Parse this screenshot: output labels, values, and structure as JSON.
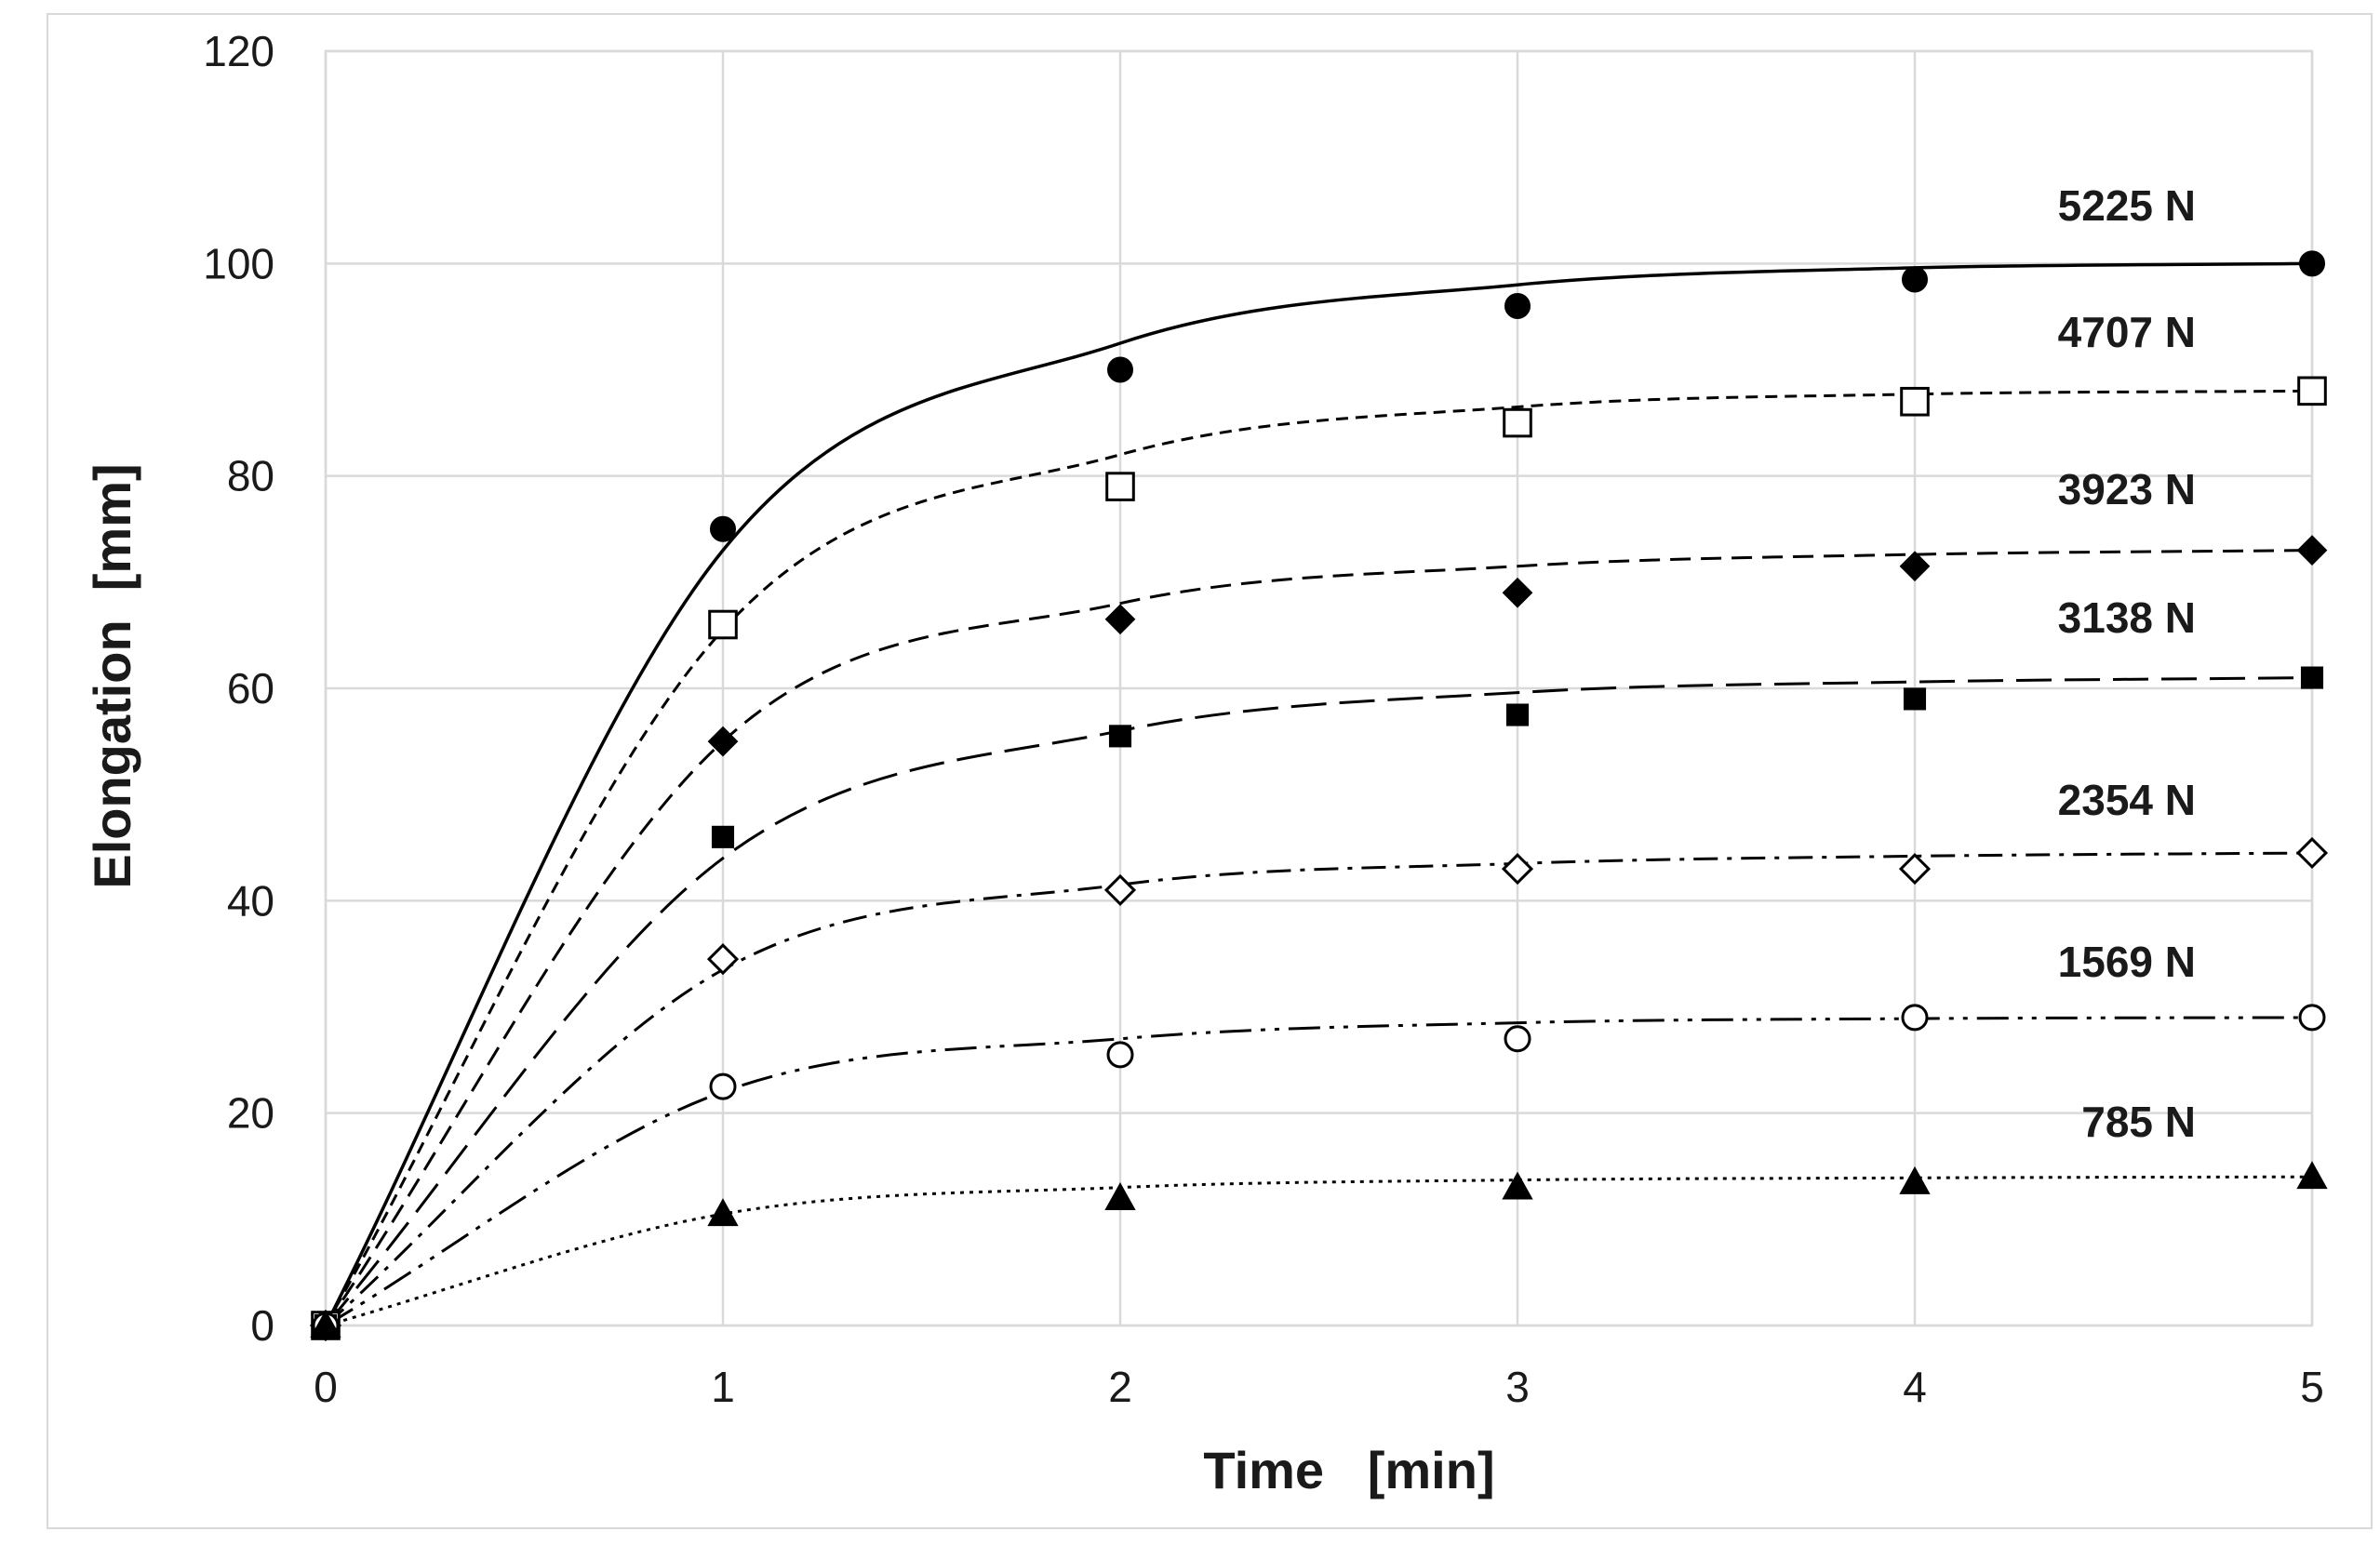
{
  "chart_data": {
    "type": "line",
    "title": "",
    "xlabel": "Time   [min]",
    "ylabel": "Elongation  [mm]",
    "xlim": [
      0,
      5
    ],
    "ylim": [
      0,
      120
    ],
    "xticks": [
      "0",
      "1",
      "2",
      "3",
      "4",
      "5"
    ],
    "yticks": [
      "0",
      "20",
      "40",
      "60",
      "80",
      "100",
      "120"
    ],
    "grid": true,
    "legend": "inline labels at right",
    "series": [
      {
        "name": "5225 N",
        "marker": "filled-circle",
        "line_style": "solid",
        "x": [
          0,
          1,
          2,
          3,
          4,
          5
        ],
        "y": [
          0,
          75,
          90,
          96,
          98.5,
          100
        ],
        "fit": [
          0,
          73,
          92.5,
          98,
          99.6,
          100
        ]
      },
      {
        "name": "4707 N",
        "marker": "open-square",
        "line_style": "short-dash",
        "x": [
          0,
          1,
          2,
          3,
          4,
          5
        ],
        "y": [
          0,
          66,
          79,
          85,
          87,
          88
        ],
        "fit": [
          0,
          65.5,
          82,
          86.5,
          87.7,
          88
        ]
      },
      {
        "name": "3923 N",
        "marker": "filled-diamond",
        "line_style": "dash",
        "x": [
          0,
          1,
          2,
          3,
          4,
          5
        ],
        "y": [
          0,
          55,
          66.5,
          69,
          71.5,
          73
        ],
        "fit": [
          0,
          55,
          68,
          71.5,
          72.6,
          73
        ]
      },
      {
        "name": "3138 N",
        "marker": "filled-square",
        "line_style": "long-dash",
        "x": [
          0,
          1,
          2,
          3,
          4,
          5
        ],
        "y": [
          0,
          46,
          55.5,
          57.5,
          59,
          61
        ],
        "fit": [
          0,
          44,
          56,
          59.6,
          60.6,
          61
        ]
      },
      {
        "name": "2354 N",
        "marker": "open-diamond",
        "line_style": "dash-dot",
        "x": [
          0,
          1,
          2,
          3,
          4,
          5
        ],
        "y": [
          0,
          34.5,
          41,
          43,
          43,
          44.5
        ],
        "fit": [
          0,
          33.5,
          41.5,
          43.5,
          44.2,
          44.5
        ]
      },
      {
        "name": "1569 N",
        "marker": "open-circle",
        "line_style": "dash-dot-dot",
        "x": [
          0,
          1,
          2,
          3,
          4,
          5
        ],
        "y": [
          0,
          22.5,
          25.5,
          27,
          29,
          29
        ],
        "fit": [
          0,
          22,
          27,
          28.5,
          28.9,
          29
        ]
      },
      {
        "name": "785 N",
        "marker": "filled-triangle",
        "line_style": "dotted",
        "x": [
          0,
          1,
          2,
          3,
          4,
          5
        ],
        "y": [
          0,
          10.5,
          12,
          13,
          13.5,
          14
        ],
        "fit": [
          0,
          10.5,
          13,
          13.7,
          13.9,
          14
        ]
      }
    ]
  }
}
